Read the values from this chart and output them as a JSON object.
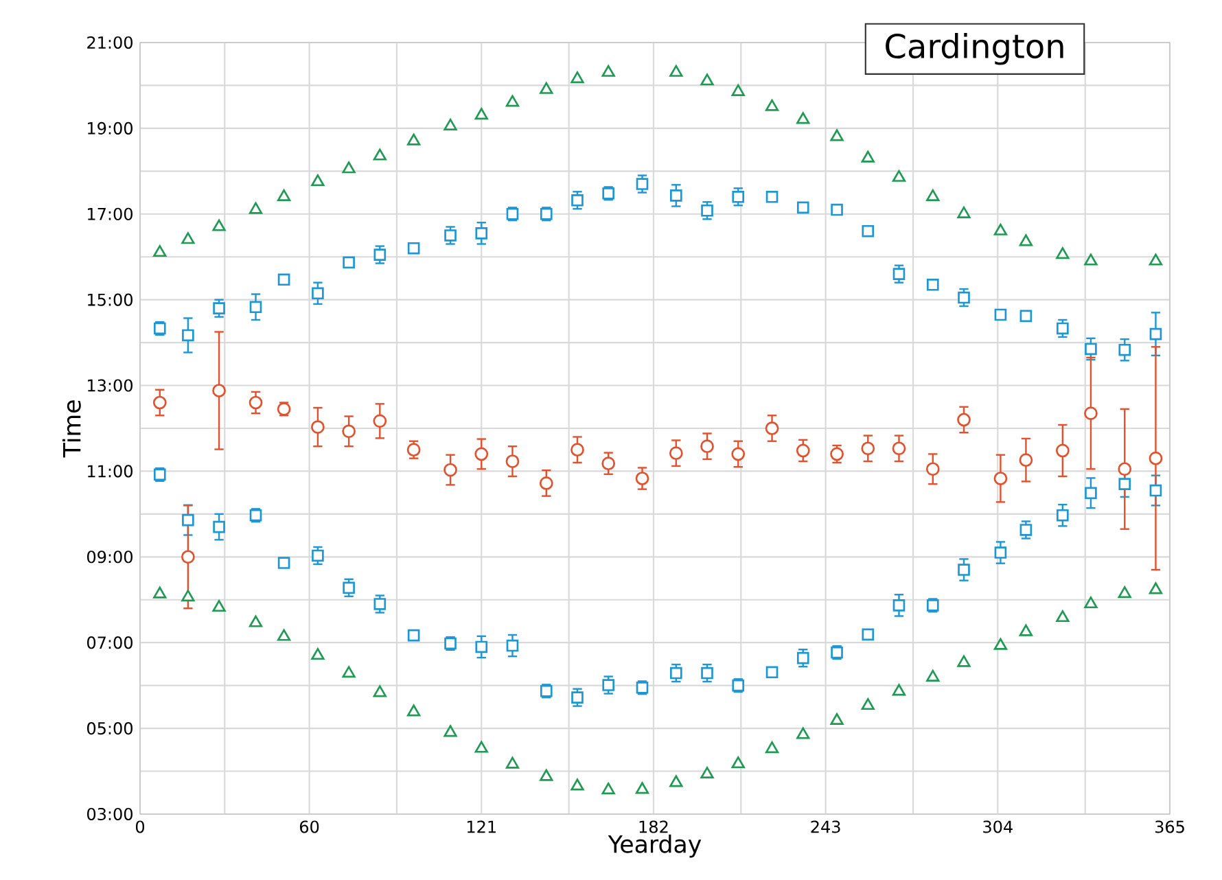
{
  "chart_data": {
    "type": "scatter",
    "title": "Cardington",
    "xlabel": "Yearday",
    "ylabel": "Time",
    "x": [
      7,
      17,
      28,
      41,
      51,
      63,
      74,
      85,
      97,
      110,
      121,
      132,
      144,
      155,
      166,
      178,
      190,
      201,
      212,
      224,
      235,
      247,
      258,
      269,
      281,
      292,
      305,
      314,
      327,
      337,
      349,
      360
    ],
    "xlim": [
      0,
      365
    ],
    "xticks": [
      0,
      {
        "value": 30,
        "label": null
      },
      60,
      {
        "value": 91,
        "label": null
      },
      121,
      {
        "value": 152,
        "label": null
      },
      182,
      {
        "value": 213,
        "label": null
      },
      243,
      {
        "value": 274,
        "label": null
      },
      304,
      {
        "value": 335,
        "label": null
      },
      365
    ],
    "ylim": [
      3,
      21
    ],
    "yticks": [
      {
        "value": 3,
        "label": "03:00"
      },
      {
        "value": 4,
        "label": null
      },
      {
        "value": 5,
        "label": "05:00"
      },
      {
        "value": 6,
        "label": null
      },
      {
        "value": 7,
        "label": "07:00"
      },
      {
        "value": 8,
        "label": null
      },
      {
        "value": 9,
        "label": "09:00"
      },
      {
        "value": 10,
        "label": null
      },
      {
        "value": 11,
        "label": "11:00"
      },
      {
        "value": 12,
        "label": null
      },
      {
        "value": 13,
        "label": "13:00"
      },
      {
        "value": 14,
        "label": null
      },
      {
        "value": 15,
        "label": "15:00"
      },
      {
        "value": 16,
        "label": null
      },
      {
        "value": 17,
        "label": "17:00"
      },
      {
        "value": 18,
        "label": null
      },
      {
        "value": 19,
        "label": "19:00"
      },
      {
        "value": 20,
        "label": null
      },
      {
        "value": 21,
        "label": "21:00"
      }
    ],
    "grid": true,
    "series": [
      {
        "color": "#1f9a52",
        "marker": "triangle",
        "values": [
          16.1,
          16.4,
          16.7,
          17.1,
          17.4,
          17.75,
          18.05,
          18.35,
          18.7,
          19.05,
          19.3,
          19.6,
          19.9,
          20.15,
          20.3,
          null,
          20.3,
          20.1,
          19.85,
          19.5,
          19.2,
          18.8,
          18.3,
          17.85,
          17.4,
          17.0,
          16.6,
          16.35,
          16.05,
          15.9,
          null,
          15.9
        ]
      },
      {
        "color": "#1f9a52",
        "marker": "triangle",
        "values": [
          8.13,
          8.06,
          7.82,
          7.46,
          7.14,
          6.7,
          6.28,
          5.83,
          5.38,
          4.9,
          4.53,
          4.16,
          3.87,
          3.65,
          3.56,
          3.57,
          3.73,
          3.93,
          4.17,
          4.52,
          4.85,
          5.18,
          5.53,
          5.86,
          6.19,
          6.53,
          6.93,
          7.25,
          7.58,
          7.9,
          8.14,
          8.23
        ]
      },
      {
        "color": "#1c96d4",
        "marker": "square",
        "values": [
          14.33,
          14.17,
          14.8,
          14.83,
          15.47,
          15.15,
          15.87,
          16.05,
          16.2,
          16.5,
          16.55,
          17.0,
          17.0,
          17.32,
          17.48,
          17.7,
          17.43,
          17.08,
          17.4,
          17.4,
          17.15,
          17.1,
          16.6,
          15.6,
          15.35,
          15.05,
          14.65,
          14.62,
          14.33,
          13.85,
          13.83,
          14.2
        ],
        "errors": [
          0.15,
          0.4,
          0.2,
          0.3,
          0.1,
          0.25,
          0.1,
          0.2,
          0.1,
          0.2,
          0.25,
          0.15,
          0.15,
          0.2,
          0.15,
          0.2,
          0.25,
          0.2,
          0.2,
          0.1,
          0.1,
          0.1,
          0.1,
          0.2,
          0.1,
          0.2,
          0.1,
          0.1,
          0.2,
          0.25,
          0.25,
          0.5
        ]
      },
      {
        "color": "#1c96d4",
        "marker": "square",
        "values": [
          10.92,
          9.86,
          9.7,
          9.97,
          8.86,
          9.03,
          8.28,
          7.9,
          7.17,
          6.98,
          6.9,
          6.93,
          5.87,
          5.72,
          6.01,
          5.95,
          6.29,
          6.29,
          6.0,
          6.31,
          6.64,
          6.77,
          7.19,
          7.87,
          7.87,
          8.7,
          9.1,
          9.63,
          9.97,
          10.49,
          10.7,
          10.55
        ],
        "errors": [
          0.15,
          0.35,
          0.3,
          0.15,
          0.1,
          0.2,
          0.2,
          0.2,
          0.1,
          0.15,
          0.25,
          0.25,
          0.15,
          0.2,
          0.2,
          0.15,
          0.2,
          0.2,
          0.15,
          0.1,
          0.2,
          0.15,
          0.1,
          0.25,
          0.15,
          0.25,
          0.25,
          0.2,
          0.25,
          0.35,
          0.3,
          0.35
        ]
      },
      {
        "color": "#e4502c",
        "marker": "circle",
        "values": [
          12.6,
          9.0,
          12.88,
          12.6,
          12.45,
          12.03,
          11.93,
          12.17,
          11.5,
          11.03,
          11.4,
          11.23,
          10.72,
          11.5,
          11.18,
          10.83,
          11.42,
          11.58,
          11.4,
          12.0,
          11.48,
          11.4,
          11.53,
          11.53,
          11.05,
          12.2,
          10.83,
          11.26,
          11.48,
          12.35,
          11.05,
          11.3
        ],
        "errors": [
          0.3,
          1.2,
          1.37,
          0.25,
          0.15,
          0.45,
          0.35,
          0.4,
          0.2,
          0.35,
          0.35,
          0.35,
          0.3,
          0.3,
          0.25,
          0.25,
          0.3,
          0.3,
          0.3,
          0.3,
          0.25,
          0.2,
          0.3,
          0.3,
          0.35,
          0.3,
          0.55,
          0.5,
          0.6,
          1.3,
          1.4,
          2.6
        ]
      }
    ]
  }
}
